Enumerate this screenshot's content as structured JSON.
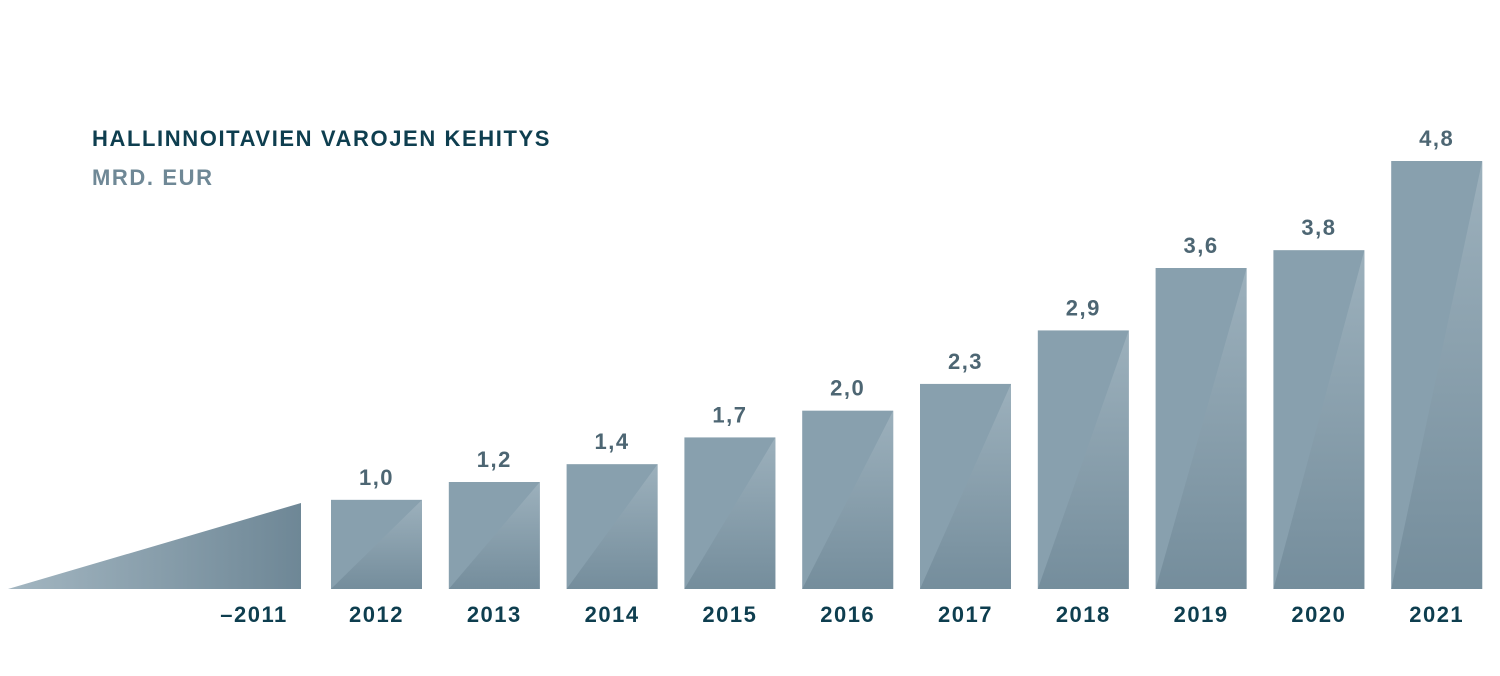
{
  "colors": {
    "bar_main": "#88a0ae",
    "bar_dark": "#6e8796",
    "bar_light": "#a3b6c1",
    "value_label": "#4d6673",
    "tick_label": "#0e3e4f",
    "title": "#0e3e4f",
    "subtitle": "#6f8896"
  },
  "chart_data": {
    "type": "bar",
    "title": "HALLINNOITAVIEN VAROJEN KEHITYS",
    "subtitle": "MRD. EUR",
    "xlabel": "",
    "ylabel": "",
    "ylim": [
      0,
      4.8
    ],
    "grid": false,
    "legend": "none",
    "lead_in_shape": "triangle ramp before first bar",
    "categories": [
      "–2011",
      "2012",
      "2013",
      "2014",
      "2015",
      "2016",
      "2017",
      "2018",
      "2019",
      "2020",
      "2021"
    ],
    "values": [
      null,
      1.0,
      1.2,
      1.4,
      1.7,
      2.0,
      2.3,
      2.9,
      3.6,
      3.8,
      4.8
    ],
    "value_labels": [
      "",
      "1,0",
      "1,2",
      "1,4",
      "1,7",
      "2,0",
      "2,3",
      "2,9",
      "3,6",
      "3,8",
      "4,8"
    ]
  }
}
